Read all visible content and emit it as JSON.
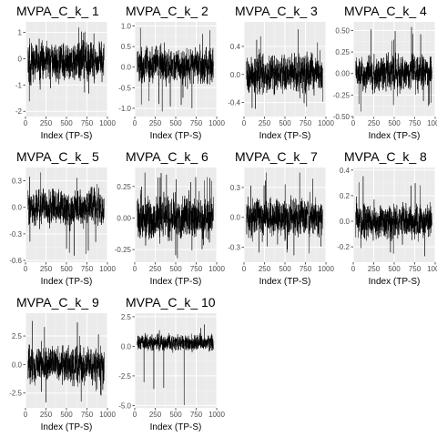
{
  "figure": {
    "layout": {
      "rows": 3,
      "cols": 4
    },
    "colors": {
      "panel_bg": "#ebebeb",
      "grid_major": "#ffffff",
      "grid_minor": "#f5f5f5",
      "line": "#000000",
      "axis_text": "#4d4d4d"
    }
  },
  "chart_data": [
    {
      "type": "line",
      "title": "MVPA_C_k_ 1",
      "xlabel": "Index (TP-S)",
      "ylabel": "",
      "xlim": [
        0,
        1000
      ],
      "ylim": [
        -2.2,
        1.4
      ],
      "xticks": [
        0,
        250,
        500,
        750,
        1000
      ],
      "xtick_labels": [
        "0",
        "250",
        "500",
        "750",
        "1000"
      ],
      "yticks": [
        -2,
        -1,
        0,
        1
      ],
      "ytick_labels": [
        "-2",
        "-1",
        "0",
        "1"
      ],
      "series_summary": {
        "n": 1000,
        "center": -0.1,
        "amplitude": 0.8,
        "min": -2.0,
        "max": 1.2
      }
    },
    {
      "type": "line",
      "title": "MVPA_C_k_ 2",
      "xlabel": "Index (TP-S)",
      "ylabel": "",
      "xlim": [
        0,
        1000
      ],
      "ylim": [
        -1.2,
        1.1
      ],
      "xticks": [
        0,
        250,
        500,
        750,
        1000
      ],
      "xtick_labels": [
        "0",
        "250",
        "500",
        "750",
        "1000"
      ],
      "yticks": [
        -1.0,
        -0.5,
        0.0,
        0.5,
        1.0
      ],
      "ytick_labels": [
        "-1.0",
        "-0.5",
        "0.0",
        "0.5",
        "1.0"
      ],
      "series_summary": {
        "n": 1000,
        "center": 0.05,
        "amplitude": 0.45,
        "min": -1.1,
        "max": 1.0
      }
    },
    {
      "type": "line",
      "title": "MVPA_C_k_ 3",
      "xlabel": "Index (TP-S)",
      "ylabel": "",
      "xlim": [
        0,
        1000
      ],
      "ylim": [
        -0.6,
        0.75
      ],
      "xticks": [
        0,
        250,
        500,
        750,
        1000
      ],
      "xtick_labels": [
        "0",
        "250",
        "500",
        "750",
        "1000"
      ],
      "yticks": [
        -0.4,
        0.0,
        0.4
      ],
      "ytick_labels": [
        "-0.4",
        "0.0",
        "0.4"
      ],
      "series_summary": {
        "n": 1000,
        "center": 0.0,
        "amplitude": 0.3,
        "min": -0.55,
        "max": 0.7
      }
    },
    {
      "type": "line",
      "title": "MVPA_C_k_ 4",
      "xlabel": "Index (TP-S)",
      "ylabel": "",
      "xlim": [
        0,
        1000
      ],
      "ylim": [
        -0.5,
        0.6
      ],
      "xticks": [
        0,
        250,
        500,
        750,
        1000
      ],
      "xtick_labels": [
        "0",
        "250",
        "500",
        "750",
        "1000"
      ],
      "yticks": [
        -0.5,
        -0.25,
        0.0,
        0.25,
        0.5
      ],
      "ytick_labels": [
        "-0.50",
        "-0.25",
        "0.00",
        "0.25",
        "0.50"
      ],
      "series_summary": {
        "n": 1000,
        "center": 0.0,
        "amplitude": 0.22,
        "min": -0.45,
        "max": 0.55
      }
    },
    {
      "type": "line",
      "title": "MVPA_C_k_ 5",
      "xlabel": "Index (TP-S)",
      "ylabel": "",
      "xlim": [
        0,
        1000
      ],
      "ylim": [
        -0.62,
        0.45
      ],
      "xticks": [
        0,
        250,
        500,
        750,
        1000
      ],
      "xtick_labels": [
        "0",
        "250",
        "500",
        "750",
        "1000"
      ],
      "yticks": [
        -0.6,
        -0.3,
        0.0,
        0.3
      ],
      "ytick_labels": [
        "-0.6",
        "-0.3",
        "0.0",
        "0.3"
      ],
      "series_summary": {
        "n": 1000,
        "center": 0.0,
        "amplitude": 0.22,
        "min": -0.6,
        "max": 0.4
      }
    },
    {
      "type": "line",
      "title": "MVPA_C_k_ 6",
      "xlabel": "Index (TP-S)",
      "ylabel": "",
      "xlim": [
        0,
        1000
      ],
      "ylim": [
        -0.35,
        0.4
      ],
      "xticks": [
        0,
        250,
        500,
        750,
        1000
      ],
      "xtick_labels": [
        "0",
        "250",
        "500",
        "750",
        "1000"
      ],
      "yticks": [
        -0.25,
        0.0,
        0.25
      ],
      "ytick_labels": [
        "-0.25",
        "0.00",
        "0.25"
      ],
      "series_summary": {
        "n": 1000,
        "center": 0.0,
        "amplitude": 0.18,
        "min": -0.33,
        "max": 0.36
      }
    },
    {
      "type": "line",
      "title": "MVPA_C_k_ 7",
      "xlabel": "Index (TP-S)",
      "ylabel": "",
      "xlim": [
        0,
        1000
      ],
      "ylim": [
        -0.45,
        0.5
      ],
      "xticks": [
        0,
        250,
        500,
        750,
        1000
      ],
      "xtick_labels": [
        "0",
        "250",
        "500",
        "750",
        "1000"
      ],
      "yticks": [
        -0.3,
        0.0,
        0.3
      ],
      "ytick_labels": [
        "-0.3",
        "0.0",
        "0.3"
      ],
      "series_summary": {
        "n": 1000,
        "center": 0.0,
        "amplitude": 0.2,
        "min": -0.4,
        "max": 0.45
      }
    },
    {
      "type": "line",
      "title": "MVPA_C_k_ 8",
      "xlabel": "Index (TP-S)",
      "ylabel": "",
      "xlim": [
        0,
        1000
      ],
      "ylim": [
        -0.32,
        0.42
      ],
      "xticks": [
        0,
        250,
        500,
        750,
        1000
      ],
      "xtick_labels": [
        "0",
        "250",
        "500",
        "750",
        "1000"
      ],
      "yticks": [
        -0.2,
        0.0,
        0.2,
        0.4
      ],
      "ytick_labels": [
        "-0.2",
        "0.0",
        "0.2",
        "0.4"
      ],
      "series_summary": {
        "n": 1000,
        "center": 0.0,
        "amplitude": 0.14,
        "min": -0.3,
        "max": 0.36
      }
    },
    {
      "type": "line",
      "title": "MVPA_C_k_ 9",
      "xlabel": "Index (TP-S)",
      "ylabel": "",
      "xlim": [
        0,
        1000
      ],
      "ylim": [
        -3.8,
        4.5
      ],
      "xticks": [
        0,
        250,
        500,
        750,
        1000
      ],
      "xtick_labels": [
        "0",
        "250",
        "500",
        "750",
        "1000"
      ],
      "yticks": [
        -2.5,
        0.0,
        2.5
      ],
      "ytick_labels": [
        "-2.5",
        "0.0",
        "2.5"
      ],
      "series_summary": {
        "n": 1000,
        "center": 0.0,
        "amplitude": 1.7,
        "min": -3.4,
        "max": 4.0
      }
    },
    {
      "type": "line",
      "title": "MVPA_C_k_ 10",
      "xlabel": "Index (TP-S)",
      "ylabel": "",
      "xlim": [
        0,
        1000
      ],
      "ylim": [
        -5.2,
        2.8
      ],
      "xticks": [
        0,
        250,
        500,
        750,
        1000
      ],
      "xtick_labels": [
        "0",
        "250",
        "500",
        "750",
        "1000"
      ],
      "yticks": [
        -5.0,
        -2.5,
        0.0,
        2.5
      ],
      "ytick_labels": [
        "-5.0",
        "-2.5",
        "0.0",
        "2.5"
      ],
      "series_summary": {
        "n": 1000,
        "center": 0.3,
        "amplitude": 0.7,
        "min": -5.0,
        "max": 2.0
      }
    }
  ]
}
